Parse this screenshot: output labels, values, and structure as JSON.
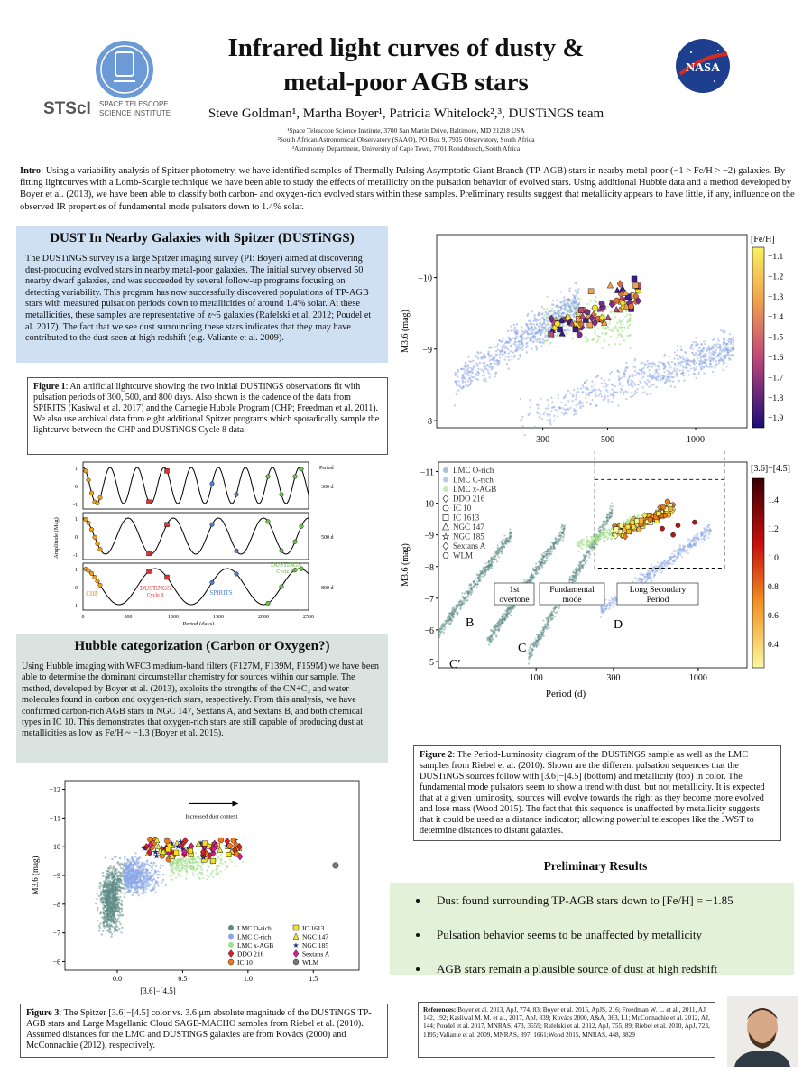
{
  "header": {
    "title_line1": "Infrared light curves of dusty &",
    "title_line2": "metal-poor AGB stars",
    "authors": "Steve Goldman¹, Martha Boyer¹, Patricia Whitelock²,³, DUSTiNGS team",
    "affiliations": [
      "¹Space Telescope Science Institute, 3700 San Martin Drive, Baltimore, MD 21218 USA",
      "²South African Astronomical Observatory (SAAO), PO Box 9, 7935 Observatory, South Africa",
      "³Astronomy Department, University of Cape Town, 7701 Rondebosch, South Africa"
    ],
    "stsci_logo_text": "STScI",
    "stsci_logo_sub1": "SPACE TELESCOPE",
    "stsci_logo_sub2": "SCIENCE INSTITUTE",
    "nasa_logo_text": "NASA"
  },
  "intro": {
    "label": "Intro",
    "text": ": Using a variability analysis of Spitzer photometry, we have identified samples of Thermally Pulsing Asymptotic Giant Branch (TP-AGB) stars in nearby metal-poor (−1 > Fe/H > −2) galaxies. By fitting lightcurves with a Lomb-Scargle technique we have been able to study the effects of metallicity on the pulsation behavior of evolved stars. Using additional Hubble data and a method developed by Boyer et al. (2013), we have been able to classify both carbon- and oxygen-rich evolved stars within these samples. Preliminary results suggest that metallicity appears to have little, if any, influence on the observed IR properties of fundamental mode pulsators down to 1.4% solar."
  },
  "dustings": {
    "heading": "DUST In Nearby Galaxies with Spitzer (DUSTiNGS)",
    "body": "The DUSTiNGS survey is a large Spitzer imaging survey (PI: Boyer) aimed at discovering dust-producing evolved stars in nearby metal-poor galaxies. The initial survey observed 50 nearby dwarf galaxies, and was succeeded by several follow-up programs focusing on detecting variability. This program has now successfully discovered populations of TP-AGB stars with measured pulsation periods down to metallicities of around 1.4% solar. At these metallicities, these samples are representative of z~5 galaxies (Rafelski et al. 2012; Poudel et al. 2017). The fact that we see dust surrounding these stars indicates that they may have contributed to the dust seen at high redshift (e.g. Valiante et al. 2009)."
  },
  "fig1": {
    "caption_label": "Figure 1",
    "caption": ":  An artificial lightcurve showing the two initial DUSTiNGS observations fit with pulsation periods of 300, 500, and 800 days. Also shown is the cadence of the data from SPIRITS (Kasiwal et al. 2017) and the Carnegie Hubble Program (CHP; Freedman et al. 2011). We also use archival data from eight additional Spitzer programs which sporadically sample the lightcurve between the CHP and DUSTiNGS Cycle 8 data.",
    "ylabel": "Amplitude (Mag)",
    "xlabel": "Period (days)",
    "period_header": "Period",
    "periods": [
      "300 d",
      "500 d",
      "800 d"
    ],
    "xticks": [
      "0",
      "500",
      "1000",
      "1500",
      "2000",
      "2500"
    ],
    "yticks": [
      "1",
      "0",
      "-1"
    ],
    "label_chp": "CHP",
    "label_dustings8": "DUSTiNGS",
    "label_cycle8": "Cycle 8",
    "label_spirits": "SPIRITS",
    "label_dustings11": "DUSTiNGS",
    "label_cycle11": "Cycle 11"
  },
  "hubble": {
    "heading": "Hubble categorization (Carbon or Oxygen?)",
    "body": "Using Hubble imaging with WFC3 medium-band filters (F127M, F139M, F159M) we have been able to determine the dominant circumstellar chemistry for sources within our sample. The method, developed by Boyer et al. (2013), exploits the strengths of the CN+C₂ and water molecules found in carbon and oxygen-rich stars, respectively. From this analysis, we have confirmed carbon-rich AGB stars in NGC 147, Sextans A, and Sextans B, and both chemical types in IC 10. This demonstrates that oxygen-rich stars are still capable of producing dust at metallicities as low as Fe/H ~ −1.3 (Boyer et al. 2015)."
  },
  "fig3": {
    "caption_label": "Figure 3",
    "caption": ": The Spitzer [3.6]−[4.5] color vs. 3.6 μm absolute magnitude of the DUSTiNGS TP-AGB stars and Large Magellanic Cloud SAGE-MACHO samples from Riebel et al. (2010). Assumed distances for the LMC and DUSTiNGS galaxies are from Kovács (2000) and McConnachie (2012), respectively.",
    "xlabel": "[3.6]−[4.5]",
    "ylabel": "M3.6 (mag)",
    "arrow_label": "Increased dust content",
    "xticks": [
      "0.0",
      "0.5",
      "1.0",
      "1.5"
    ],
    "yticks": [
      "−12",
      "−11",
      "−10",
      "−9",
      "−8",
      "−7",
      "−6"
    ],
    "legend": [
      "LMC O-rich",
      "LMC C-rich",
      "LMC x-AGB",
      "DDO 216",
      "IC 10",
      "IC 1613",
      "NGC 147",
      "NGC 185",
      "Sextans A",
      "WLM"
    ]
  },
  "fig2": {
    "caption_label": "Figure 2",
    "caption": ": The Period-Luminosity diagram of the DUSTiNGS sample as well as the LMC samples from Riebel et al. (2010). Shown are the different pulsation sequences that the DUSTiNGS sources follow with [3.6]−[4.5] (bottom) and metallicity (top) in color. The fundamental mode pulsators seem to show a trend with dust, but not metallicity. It is expected that at a given luminosity, sources will evolve towards the right as they become more evolved and lose mass (Wood 2015). The fact that this sequence is unaffected by metallicity suggests that it could be used as a distance indicator; allowing powerful telescopes like the JWST to determine distances to distant galaxies.",
    "top_ylabel": "M3.6 (mag)",
    "top_yticks": [
      "−10",
      "−9",
      "−8"
    ],
    "top_xticks": [
      "300",
      "500",
      "1000"
    ],
    "feh_label": "[Fe/H]",
    "feh_ticks": [
      "−1.1",
      "−1.2",
      "−1.3",
      "−1.4",
      "−1.5",
      "−1.6",
      "−1.7",
      "−1.8",
      "−1.9"
    ],
    "bot_ylabel": "M3.6 (mag)",
    "bot_xlabel": "Period (d)",
    "bot_yticks": [
      "−11",
      "−10",
      "−9",
      "−8",
      "−7",
      "−6",
      "−5"
    ],
    "bot_xticks": [
      "100",
      "300",
      "1000"
    ],
    "color_label": "[3.6]−[4.5]",
    "color_ticks": [
      "1.4",
      "1.2",
      "1.0",
      "0.8",
      "0.6",
      "0.4"
    ],
    "legend": [
      "LMC O-rich",
      "LMC C-rich",
      "LMC x-AGB",
      "DDO 216",
      "IC 10",
      "IC 1613",
      "NGC 147",
      "NGC 185",
      "Sextans A",
      "WLM"
    ],
    "seq_overtone": "1st\novertone",
    "seq_overtone_1": "1st",
    "seq_overtone_2": "overtone",
    "seq_fund_1": "Fundamental",
    "seq_fund_2": "mode",
    "seq_lsp_1": "Long Secondary",
    "seq_lsp_2": "Period",
    "seq_B": "B",
    "seq_C": "C",
    "seq_Cp": "C′",
    "seq_D": "D"
  },
  "results": {
    "heading": "Preliminary Results",
    "items": [
      "Dust found surrounding TP-AGB stars down to [Fe/H] = −1.85",
      "Pulsation behavior seems to be unaffected by metallicity",
      "AGB stars remain a plausible source of dust at high redshift"
    ]
  },
  "references": {
    "label": "References:",
    "text": " Boyer et al. 2013, ApJ, 774, 83; Boyer et al. 2015, ApJS, 216; Freedman W. L. et al., 2011, AJ, 142, 192; Kasliwal M. M. et al., 2017, ApJ, 839; Kovács 2000, A&A, 363, L1; McConnachie et al. 2012, AJ, 144; Poudel et al. 2017, MNRAS, 473, 3559; Rafelski et al. 2012, ApJ, 755, 89; Riebel et al. 2010, ApJ, 723, 1195; Valiante et al. 2009, MNRAS, 397, 1661;Wood 2015, MNRAS, 448, 3829"
  },
  "colors": {
    "blue_box": "#cfe0f3",
    "green_box": "#e3f1d9",
    "gray_box": "#dbe3e0"
  }
}
